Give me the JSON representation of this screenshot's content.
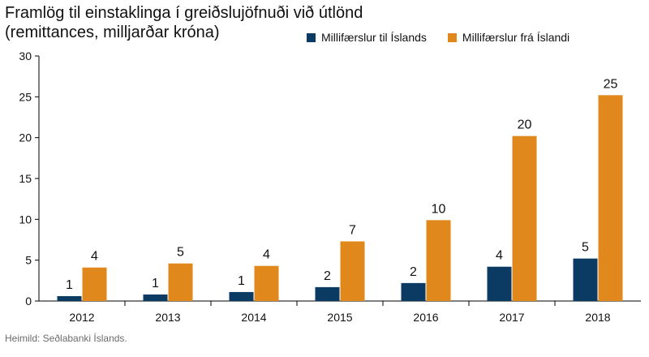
{
  "title_line1": "Framlög til einstaklinga í greiðslujöfnuði við útlönd",
  "title_line2": "(remittances, milljarðar króna)",
  "source": "Heimild: Seðlabanki Íslands.",
  "colors": {
    "series1": "#0b3a63",
    "series2": "#e0881c"
  },
  "chart_data": {
    "type": "bar",
    "title": "Framlög til einstaklinga í greiðslujöfnuði við útlönd (remittances, milljarðar króna)",
    "categories": [
      "2012",
      "2013",
      "2014",
      "2015",
      "2016",
      "2017",
      "2018"
    ],
    "series": [
      {
        "name": "Millifærslur til Íslands",
        "values": [
          0.6,
          0.8,
          1.1,
          1.7,
          2.2,
          4.2,
          5.2
        ],
        "labels": [
          "1",
          "1",
          "1",
          "2",
          "2",
          "4",
          "5"
        ]
      },
      {
        "name": "Millifærslur frá Íslandi",
        "values": [
          4.1,
          4.6,
          4.3,
          7.3,
          9.9,
          20.2,
          25.2
        ],
        "labels": [
          "4",
          "5",
          "4",
          "7",
          "10",
          "20",
          "25"
        ]
      }
    ],
    "yticks": [
      "0",
      "5",
      "10",
      "15",
      "20",
      "25",
      "30"
    ],
    "ylim": [
      0,
      30
    ],
    "grid": false,
    "legend": "top"
  }
}
